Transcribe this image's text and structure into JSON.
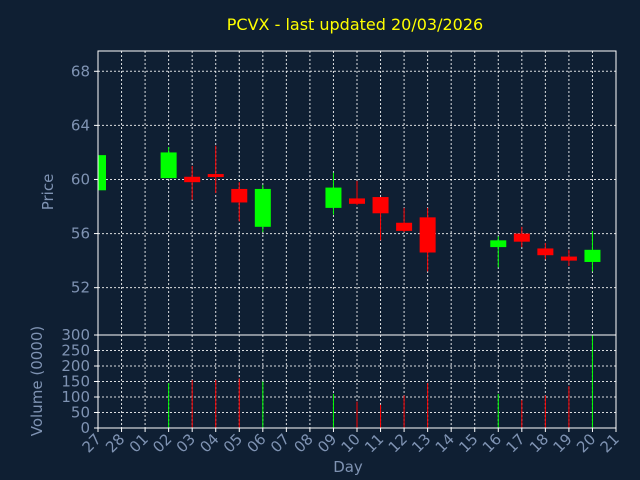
{
  "chart_data": [
    {
      "type": "candlestick",
      "title": "PCVX - last updated 20/03/2026",
      "ylabel": "Price",
      "ylim": [
        48.5,
        69.5
      ],
      "yticks": [
        52,
        56,
        60,
        64,
        68
      ],
      "grid": true,
      "colors": {
        "up": "#00ff00",
        "down": "#ff0000"
      },
      "candles": [
        {
          "x": "27",
          "open": 59.2,
          "high": 61.8,
          "low": 59.2,
          "close": 61.8,
          "dir": "up"
        },
        {
          "x": "02",
          "open": 60.1,
          "high": 62.4,
          "low": 60.1,
          "close": 62.0,
          "dir": "up"
        },
        {
          "x": "03",
          "open": 60.2,
          "high": 61.0,
          "low": 58.5,
          "close": 59.8,
          "dir": "down"
        },
        {
          "x": "04",
          "open": 60.4,
          "high": 62.5,
          "low": 59.0,
          "close": 60.2,
          "dir": "down"
        },
        {
          "x": "05",
          "open": 59.3,
          "high": 59.8,
          "low": 56.9,
          "close": 58.3,
          "dir": "down"
        },
        {
          "x": "06",
          "open": 56.5,
          "high": 59.6,
          "low": 56.1,
          "close": 59.3,
          "dir": "up"
        },
        {
          "x": "09",
          "open": 57.9,
          "high": 60.5,
          "low": 57.4,
          "close": 59.4,
          "dir": "up"
        },
        {
          "x": "10",
          "open": 58.6,
          "high": 59.9,
          "low": 58.1,
          "close": 58.2,
          "dir": "down"
        },
        {
          "x": "11",
          "open": 58.7,
          "high": 58.7,
          "low": 55.5,
          "close": 57.5,
          "dir": "down"
        },
        {
          "x": "12",
          "open": 56.8,
          "high": 57.9,
          "low": 56.1,
          "close": 56.2,
          "dir": "down"
        },
        {
          "x": "13",
          "open": 57.2,
          "high": 57.9,
          "low": 53.2,
          "close": 54.6,
          "dir": "down"
        },
        {
          "x": "16",
          "open": 55.0,
          "high": 55.8,
          "low": 53.5,
          "close": 55.5,
          "dir": "up"
        },
        {
          "x": "17",
          "open": 56.0,
          "high": 56.5,
          "low": 55.0,
          "close": 55.4,
          "dir": "down"
        },
        {
          "x": "18",
          "open": 54.9,
          "high": 55.3,
          "low": 54.1,
          "close": 54.4,
          "dir": "down"
        },
        {
          "x": "19",
          "open": 54.3,
          "high": 54.8,
          "low": 53.6,
          "close": 54.0,
          "dir": "down"
        },
        {
          "x": "20",
          "open": 53.9,
          "high": 56.2,
          "low": 53.2,
          "close": 54.8,
          "dir": "up"
        }
      ]
    },
    {
      "type": "bar",
      "ylabel": "Volume (0000)",
      "xlabel": "Day",
      "ylim": [
        0,
        300
      ],
      "yticks": [
        0,
        50,
        100,
        150,
        200,
        250,
        300
      ],
      "x_tick_labels": [
        "27",
        "28",
        "01",
        "02",
        "03",
        "04",
        "05",
        "06",
        "07",
        "08",
        "09",
        "10",
        "11",
        "12",
        "13",
        "14",
        "15",
        "16",
        "17",
        "18",
        "19",
        "20",
        "21"
      ],
      "grid": true,
      "bars": [
        {
          "x": "02",
          "value": 145,
          "dir": "up"
        },
        {
          "x": "03",
          "value": 155,
          "dir": "down"
        },
        {
          "x": "04",
          "value": 155,
          "dir": "down"
        },
        {
          "x": "05",
          "value": 160,
          "dir": "down"
        },
        {
          "x": "06",
          "value": 150,
          "dir": "up"
        },
        {
          "x": "09",
          "value": 110,
          "dir": "up"
        },
        {
          "x": "10",
          "value": 85,
          "dir": "down"
        },
        {
          "x": "11",
          "value": 75,
          "dir": "down"
        },
        {
          "x": "12",
          "value": 105,
          "dir": "down"
        },
        {
          "x": "13",
          "value": 145,
          "dir": "down"
        },
        {
          "x": "16",
          "value": 110,
          "dir": "up"
        },
        {
          "x": "17",
          "value": 90,
          "dir": "down"
        },
        {
          "x": "18",
          "value": 105,
          "dir": "down"
        },
        {
          "x": "19",
          "value": 135,
          "dir": "down"
        },
        {
          "x": "20",
          "value": 300,
          "dir": "up"
        }
      ]
    }
  ]
}
